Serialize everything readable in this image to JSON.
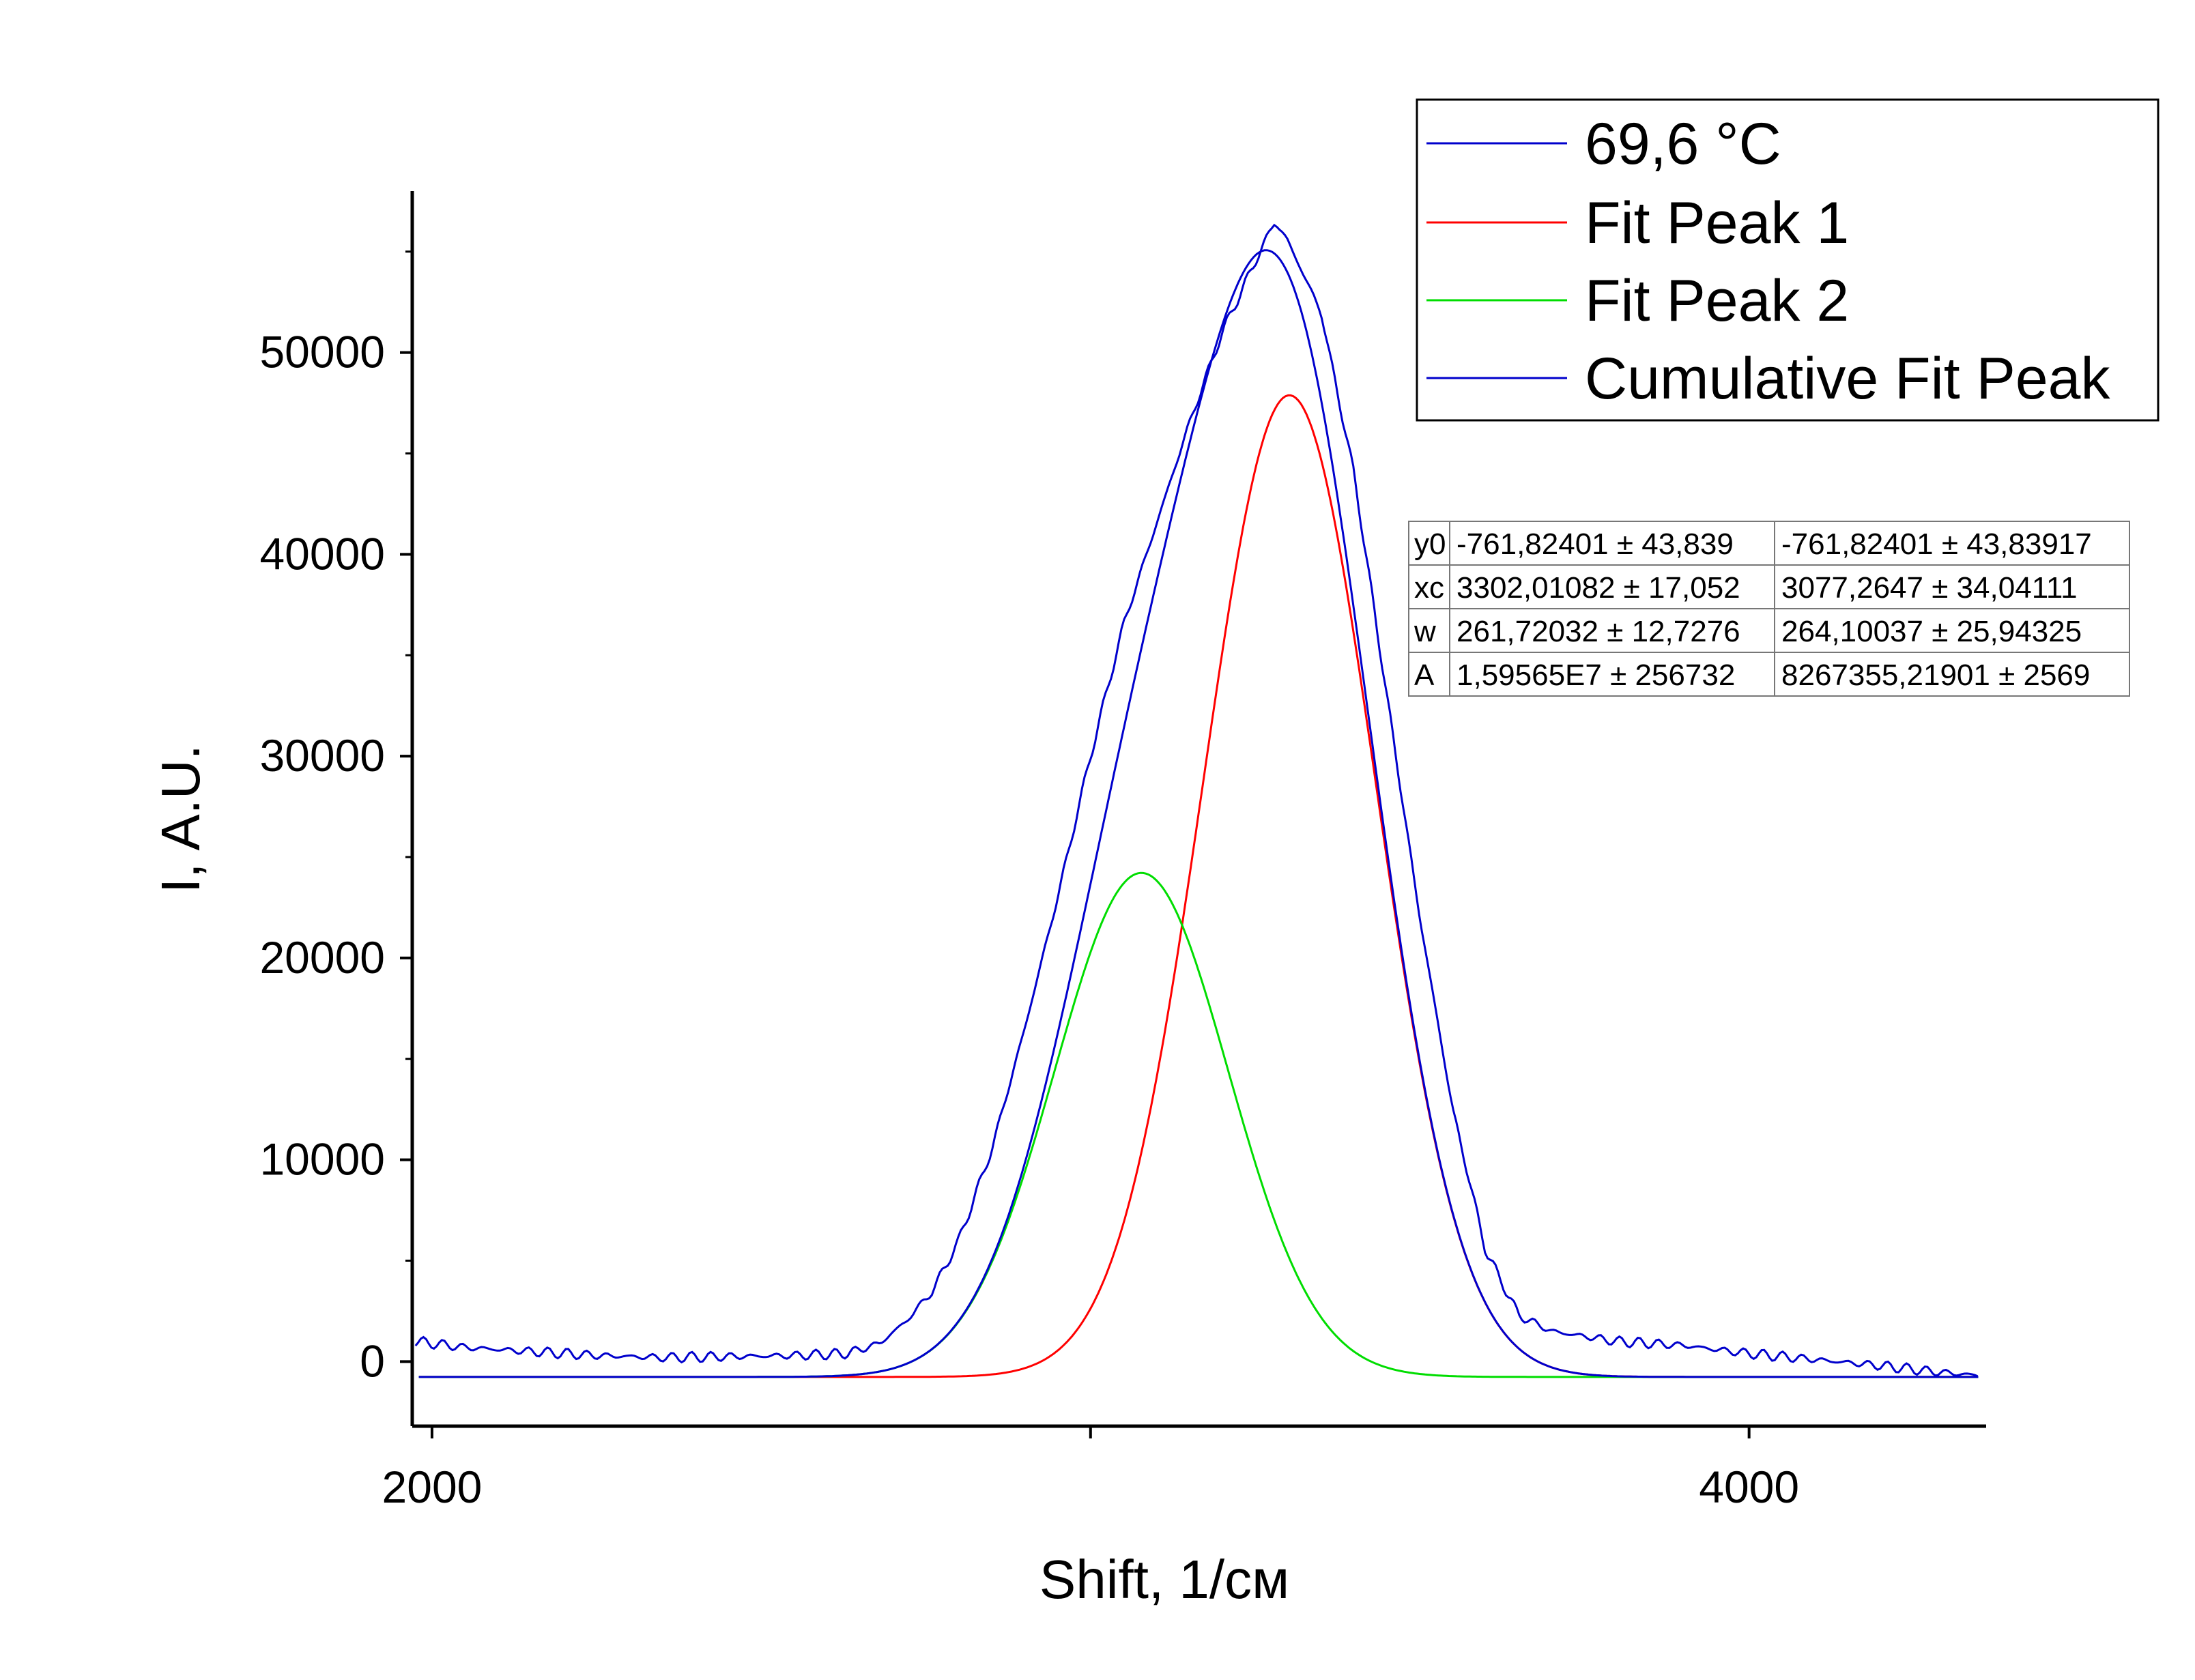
{
  "chart_data": {
    "type": "line",
    "title": "",
    "xlabel": "Shift, 1/см",
    "ylabel": "I, A.U.",
    "xlim": [
      1970,
      4360
    ],
    "ylim": [
      -3200,
      58000
    ],
    "xticks": [
      2000,
      3000,
      4000
    ],
    "xtick_labels": [
      "2000",
      "",
      "4000"
    ],
    "yticks": [
      0,
      10000,
      20000,
      30000,
      40000,
      50000
    ],
    "ytick_labels": [
      "0",
      "10000",
      "20000",
      "30000",
      "40000",
      "50000"
    ],
    "grid": false,
    "legend_position": "top-right",
    "baseline": -761.82401,
    "series": [
      {
        "name": "69,6 °C",
        "color": "#0000cc",
        "points": [
          [
            1975,
            1000
          ],
          [
            2050,
            700
          ],
          [
            2150,
            500
          ],
          [
            2250,
            300
          ],
          [
            2350,
            200
          ],
          [
            2450,
            250
          ],
          [
            2550,
            300
          ],
          [
            2630,
            400
          ],
          [
            2680,
            900
          ],
          [
            2720,
            2000
          ],
          [
            2760,
            3500
          ],
          [
            2800,
            6000
          ],
          [
            2850,
            10500
          ],
          [
            2900,
            16500
          ],
          [
            2950,
            23000
          ],
          [
            3000,
            30000
          ],
          [
            3050,
            36500
          ],
          [
            3100,
            41500
          ],
          [
            3150,
            46500
          ],
          [
            3200,
            51000
          ],
          [
            3250,
            54500
          ],
          [
            3280,
            56500
          ],
          [
            3300,
            55500
          ],
          [
            3350,
            52000
          ],
          [
            3400,
            44000
          ],
          [
            3450,
            33000
          ],
          [
            3500,
            22000
          ],
          [
            3550,
            12500
          ],
          [
            3600,
            5500
          ],
          [
            3650,
            2300
          ],
          [
            3700,
            1500
          ],
          [
            3800,
            1000
          ],
          [
            3900,
            800
          ],
          [
            4000,
            400
          ],
          [
            4100,
            100
          ],
          [
            4200,
            -200
          ],
          [
            4280,
            -500
          ],
          [
            4350,
            -700
          ]
        ]
      },
      {
        "name": "Fit Peak 1",
        "color": "#ff0000",
        "model": "gauss",
        "y0": -761.82401,
        "xc": 3302.01082,
        "w": 261.72032,
        "A": 15956500
      },
      {
        "name": "Fit Peak 2",
        "color": "#00dd00",
        "model": "gauss",
        "y0": -761.82401,
        "xc": 3077.2647,
        "w": 264.10037,
        "A": 8267355.21901
      },
      {
        "name": "Cumulative Fit Peak",
        "color": "#0000cc",
        "model": "sum"
      }
    ]
  },
  "legend": {
    "items": [
      {
        "label": "69,6 °C",
        "color": "#0000cc"
      },
      {
        "label": "Fit Peak 1",
        "color": "#ff0000"
      },
      {
        "label": "Fit Peak 2",
        "color": "#00dd00"
      },
      {
        "label": "Cumulative Fit Peak",
        "color": "#0000cc"
      }
    ]
  },
  "param_table": {
    "rows": [
      {
        "param": "y0",
        "peak1": "-761,82401 ± 43,839",
        "peak2": "-761,82401 ± 43,83917"
      },
      {
        "param": "xc",
        "peak1": "3302,01082 ± 17,052",
        "peak2": "3077,2647 ± 34,04111"
      },
      {
        "param": "w",
        "peak1": "261,72032 ± 12,7276",
        "peak2": "264,10037 ± 25,94325"
      },
      {
        "param": "A",
        "peak1": "1,59565E7 ± 256732",
        "peak2": "8267355,21901 ± 2569"
      }
    ]
  }
}
